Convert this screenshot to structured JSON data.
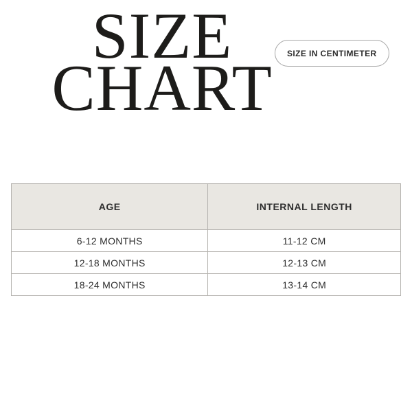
{
  "title": {
    "line1": "SIZE",
    "line2": "CHART"
  },
  "unit_badge": {
    "label": "SIZE IN CENTIMETER"
  },
  "size_table": {
    "headers": [
      "AGE",
      "INTERNAL LENGTH"
    ],
    "rows": [
      [
        "6-12 MONTHS",
        "11-12 CM"
      ],
      [
        "12-18 MONTHS",
        "12-13 CM"
      ],
      [
        "18-24 MONTHS",
        "13-14 CM"
      ]
    ]
  },
  "chart_data": {
    "type": "table",
    "title": "SIZE CHART",
    "unit_label": "SIZE IN CENTIMETER",
    "columns": [
      "AGE",
      "INTERNAL LENGTH"
    ],
    "rows": [
      [
        "6-12 MONTHS",
        "11-12 CM"
      ],
      [
        "12-18 MONTHS",
        "12-13 CM"
      ],
      [
        "18-24 MONTHS",
        "13-14 CM"
      ]
    ]
  },
  "colors": {
    "header_bg": "#e9e7e2",
    "border": "#b5b3af",
    "ink": "#1d1c1a",
    "table_ink": "#2d2d2d",
    "pill_border": "#a6a6a6",
    "page_bg": "#ffffff"
  }
}
